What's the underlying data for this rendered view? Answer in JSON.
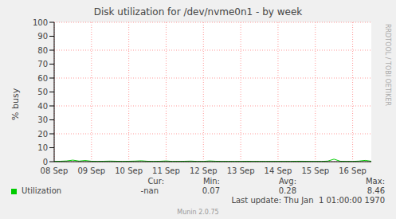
{
  "chart_data": {
    "type": "line",
    "title": "Disk utilization for /dev/nvme0n1 - by week",
    "y_label": "% busy",
    "categories": [
      "08 Sep",
      null,
      null,
      null,
      null,
      null,
      "09 Sep",
      null,
      null,
      null,
      null,
      null,
      "10 Sep",
      null,
      null,
      null,
      null,
      null,
      "11 Sep",
      null,
      null,
      null,
      null,
      null,
      "12 Sep",
      null,
      null,
      null,
      null,
      null,
      "13 Sep",
      null,
      null,
      null,
      null,
      null,
      "14 Sep",
      null,
      null,
      null,
      null,
      null,
      "15 Sep",
      null,
      null,
      null,
      null,
      null,
      "16 Sep",
      null,
      null,
      null
    ],
    "ylim": [
      0,
      100
    ],
    "yticks": [
      0,
      10,
      20,
      30,
      40,
      50,
      60,
      70,
      80,
      90,
      100
    ],
    "grid": true,
    "series": [
      {
        "name": "Utilization",
        "color": "#00cc00",
        "values": [
          0.2,
          0.3,
          0.5,
          1.1,
          0.4,
          0.8,
          0.3,
          0.2,
          0.3,
          0.4,
          0.3,
          0.2,
          0.3,
          0.4,
          0.6,
          0.3,
          0.2,
          0.3,
          0.5,
          0.2,
          0.2,
          0.3,
          0.4,
          0.2,
          0.2,
          0.5,
          0.3,
          0.2,
          0.2,
          0.2,
          0.2,
          0.3,
          0.2,
          0.2,
          0.2,
          0.2,
          0.2,
          0.2,
          0.2,
          0.3,
          0.3,
          0.2,
          0.2,
          0.2,
          0.4,
          1.8,
          0.3,
          0.2,
          0.2,
          0.4,
          0.9,
          0.3
        ],
        "stat_labels": [
          "Cur:",
          "Min:",
          "Avg:",
          "Max:"
        ],
        "stats": [
          "-nan",
          0.07,
          0.28,
          8.46
        ]
      }
    ],
    "last_update": "Last update: Thu Jan  1 01:00:00 1970",
    "generator": "Munin 2.0.75",
    "watermark": "RRDTOOL / TOBI OETIKER"
  }
}
